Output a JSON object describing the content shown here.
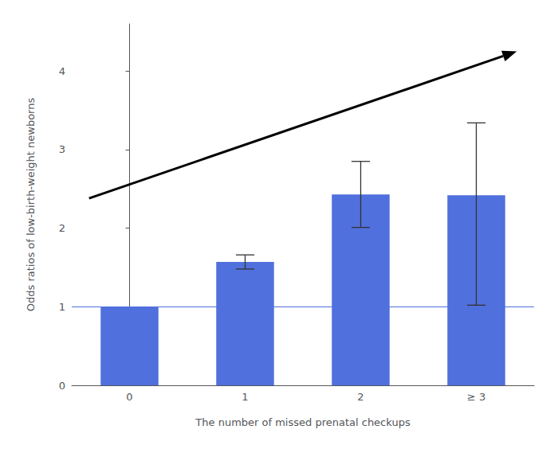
{
  "chart_data": {
    "type": "bar",
    "categories": [
      "0",
      "1",
      "2",
      "≥ 3"
    ],
    "values": [
      1.0,
      1.57,
      2.43,
      2.42
    ],
    "error_bars": [
      [
        0.0,
        0.0
      ],
      [
        0.09,
        0.09
      ],
      [
        0.42,
        0.42
      ],
      [
        1.4,
        0.92
      ]
    ],
    "reference_line": 1.0,
    "arrow": {
      "start": [
        -0.35,
        2.38
      ],
      "end": [
        3.35,
        4.25
      ],
      "color": "#000000"
    },
    "xlabel": "The number of missed prenatal checkups",
    "ylabel": "Odds ratios of low-birth-weight newborns",
    "ylim": [
      0,
      4.6
    ],
    "yticks": [
      0,
      1,
      2,
      3,
      4
    ],
    "grid": false
  }
}
